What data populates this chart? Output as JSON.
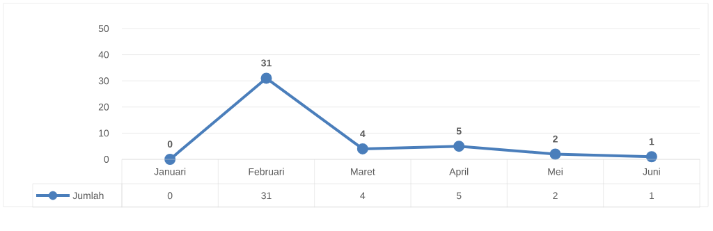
{
  "chart_data": {
    "type": "line",
    "categories": [
      "Januari",
      "Februari",
      "Maret",
      "April",
      "Mei",
      "Juni"
    ],
    "series": [
      {
        "name": "Jumlah",
        "color": "#4a7ebb",
        "values": [
          0,
          31,
          4,
          5,
          2,
          1
        ],
        "value_labels": [
          "0",
          "31",
          "4",
          "5",
          "2",
          "1"
        ]
      }
    ],
    "ylim": [
      0,
      50
    ],
    "yticks": [
      0,
      10,
      20,
      30,
      40,
      50
    ],
    "grid": "y",
    "legend": "bottom",
    "marker": "circle",
    "line_style": "solid"
  }
}
